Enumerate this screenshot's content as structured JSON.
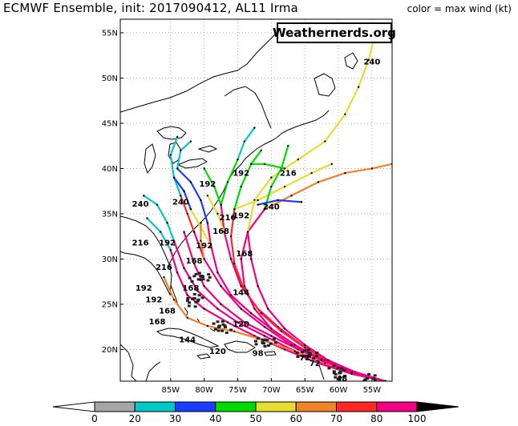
{
  "header": {
    "title": "ECMWF Ensemble, init: 2017090412, AL11 Irma",
    "color_note": "color = max wind (kt)",
    "brand": "Weathernerds.org"
  },
  "map": {
    "lat_ticks": [
      "55N",
      "50N",
      "45N",
      "40N",
      "35N",
      "30N",
      "25N",
      "20N"
    ],
    "lon_ticks": [
      "85W",
      "80W",
      "75W",
      "70W",
      "65W",
      "60W",
      "55W"
    ]
  },
  "legend": {
    "ticks": [
      "0",
      "20",
      "30",
      "40",
      "50",
      "60",
      "70",
      "80",
      "100"
    ],
    "colors": [
      "#a6a6a6",
      "#00c8c8",
      "#1e3cff",
      "#00dc00",
      "#e6dc32",
      "#f08228",
      "#ff2828",
      "#f00082"
    ]
  },
  "tracks": [
    {
      "color": "#f00082",
      "points": [
        [
          -53,
          16.5
        ],
        [
          -58,
          17.5
        ],
        [
          -62,
          18.7
        ],
        [
          -66,
          20
        ],
        [
          -70,
          21.5
        ],
        [
          -74,
          23
        ],
        [
          -77.5,
          25
        ],
        [
          -80,
          27
        ],
        [
          -81.5,
          29.5
        ],
        [
          -83,
          33
        ]
      ]
    },
    {
      "color": "#f00082",
      "points": [
        [
          -53,
          16.5
        ],
        [
          -58,
          17.4
        ],
        [
          -62.5,
          18.6
        ],
        [
          -67,
          20
        ],
        [
          -71,
          21.5
        ],
        [
          -75,
          23
        ],
        [
          -78,
          24.5
        ],
        [
          -81,
          26.5
        ],
        [
          -83,
          29
        ],
        [
          -84.5,
          32
        ]
      ]
    },
    {
      "color": "#f00082",
      "points": [
        [
          -53,
          16.5
        ],
        [
          -58,
          17.6
        ],
        [
          -62,
          19
        ],
        [
          -65.5,
          20.5
        ],
        [
          -69,
          22.5
        ],
        [
          -72,
          24.5
        ],
        [
          -74.5,
          27
        ],
        [
          -76,
          30
        ],
        [
          -77,
          33
        ],
        [
          -77.5,
          36
        ]
      ]
    },
    {
      "color": "#ff2828",
      "points": [
        [
          -53,
          16.5
        ],
        [
          -57.5,
          17.5
        ],
        [
          -61.5,
          18.8
        ],
        [
          -65,
          20.2
        ],
        [
          -68.5,
          22
        ],
        [
          -71.5,
          24
        ],
        [
          -74,
          26.5
        ],
        [
          -75.5,
          29.5
        ],
        [
          -76,
          32.5
        ],
        [
          -75.5,
          35.5
        ]
      ]
    },
    {
      "color": "#f00082",
      "points": [
        [
          -53,
          16.5
        ],
        [
          -58,
          17.3
        ],
        [
          -63,
          18.5
        ],
        [
          -68,
          20
        ],
        [
          -72.5,
          21.5
        ],
        [
          -76.5,
          23
        ],
        [
          -80,
          24.5
        ],
        [
          -82.5,
          26
        ],
        [
          -84,
          28.5
        ],
        [
          -85,
          31
        ]
      ]
    },
    {
      "color": "#f00082",
      "points": [
        [
          -53,
          16.5
        ],
        [
          -58,
          17.5
        ],
        [
          -62,
          18.8
        ],
        [
          -66,
          20.3
        ],
        [
          -69.5,
          22
        ],
        [
          -73,
          24
        ],
        [
          -76,
          26
        ],
        [
          -78,
          28.5
        ],
        [
          -79,
          31.5
        ],
        [
          -79.5,
          34
        ]
      ]
    },
    {
      "color": "#f08228",
      "points": [
        [
          -53,
          16.5
        ],
        [
          -57.5,
          17.4
        ],
        [
          -62,
          18.5
        ],
        [
          -66.5,
          19.8
        ],
        [
          -71,
          21
        ],
        [
          -75.5,
          22
        ],
        [
          -79.5,
          22.6
        ],
        [
          -82.5,
          23.5
        ],
        [
          -84.5,
          25.5
        ],
        [
          -86,
          28
        ]
      ]
    },
    {
      "color": "#f00082",
      "points": [
        [
          -53,
          16.5
        ],
        [
          -58,
          17.5
        ],
        [
          -62.5,
          18.9
        ],
        [
          -66.5,
          20.5
        ],
        [
          -70,
          22.3
        ],
        [
          -72.5,
          24.5
        ],
        [
          -74,
          27
        ],
        [
          -74.5,
          30
        ],
        [
          -73.5,
          33
        ],
        [
          -71,
          35.5
        ]
      ]
    },
    {
      "color": "#f08228",
      "points": [
        [
          -71,
          35.5
        ],
        [
          -67,
          37
        ],
        [
          -63,
          38.5
        ],
        [
          -59,
          39.5
        ],
        [
          -55,
          40
        ],
        [
          -52,
          40.5
        ]
      ]
    },
    {
      "color": "#e6dc32",
      "points": [
        [
          -73.5,
          33
        ],
        [
          -72.5,
          36.5
        ],
        [
          -70,
          39
        ],
        [
          -66,
          41
        ],
        [
          -62,
          43
        ],
        [
          -59,
          46
        ],
        [
          -57,
          49
        ],
        [
          -55.5,
          52
        ],
        [
          -54.5,
          55
        ]
      ]
    },
    {
      "color": "#e6dc32",
      "points": [
        [
          -75.5,
          35.5
        ],
        [
          -72,
          36.5
        ],
        [
          -68,
          38
        ],
        [
          -64,
          39.5
        ],
        [
          -61,
          40.5
        ]
      ]
    },
    {
      "color": "#f00082",
      "points": [
        [
          -53,
          16.5
        ],
        [
          -57.5,
          17.5
        ],
        [
          -61.5,
          18.8
        ],
        [
          -65,
          20.5
        ],
        [
          -68,
          22.3
        ],
        [
          -70.5,
          24.5
        ],
        [
          -72,
          27
        ],
        [
          -73,
          30
        ],
        [
          -73.5,
          33
        ]
      ]
    },
    {
      "color": "#f00082",
      "points": [
        [
          -53,
          16.5
        ],
        [
          -58,
          17.5
        ],
        [
          -62.5,
          18.8
        ],
        [
          -67,
          20.5
        ],
        [
          -71,
          22.5
        ],
        [
          -74.5,
          24.5
        ],
        [
          -77.5,
          27
        ],
        [
          -80,
          30
        ],
        [
          -81.5,
          33
        ]
      ]
    },
    {
      "color": "#ff2828",
      "points": [
        [
          -81.5,
          33
        ],
        [
          -82.5,
          35
        ],
        [
          -83.5,
          37
        ]
      ]
    },
    {
      "color": "#e6dc32",
      "points": [
        [
          -77,
          33
        ],
        [
          -78,
          35
        ],
        [
          -79.5,
          37
        ]
      ]
    },
    {
      "color": "#00dc00",
      "points": [
        [
          -77.5,
          36
        ],
        [
          -78.5,
          38
        ],
        [
          -80,
          40
        ]
      ]
    },
    {
      "color": "#1e3cff",
      "points": [
        [
          -79.5,
          34
        ],
        [
          -80.5,
          36.5
        ],
        [
          -82,
          38.5
        ],
        [
          -84,
          40
        ]
      ]
    },
    {
      "color": "#00c8c8",
      "points": [
        [
          -84.5,
          32
        ],
        [
          -85.5,
          34
        ],
        [
          -87,
          36
        ],
        [
          -89,
          37
        ]
      ]
    },
    {
      "color": "#00c8c8",
      "points": [
        [
          -83.5,
          37
        ],
        [
          -84.5,
          39
        ],
        [
          -85,
          41.5
        ],
        [
          -84,
          43.5
        ]
      ]
    },
    {
      "color": "#00dc00",
      "points": [
        [
          -75.5,
          35.5
        ],
        [
          -74.5,
          38
        ],
        [
          -73,
          40.5
        ],
        [
          -71.5,
          42
        ]
      ]
    },
    {
      "color": "#00dc00",
      "points": [
        [
          -71,
          35.5
        ],
        [
          -70,
          38
        ],
        [
          -68.5,
          40
        ],
        [
          -67.5,
          42.5
        ]
      ]
    },
    {
      "color": "#e6dc32",
      "points": [
        [
          -79,
          31.5
        ],
        [
          -80.5,
          33.5
        ],
        [
          -82,
          35.5
        ]
      ]
    },
    {
      "color": "#1e3cff",
      "points": [
        [
          -82,
          35.5
        ],
        [
          -83,
          37.5
        ],
        [
          -84.5,
          39
        ]
      ]
    },
    {
      "color": "#00c8c8",
      "points": [
        [
          -85,
          31
        ],
        [
          -86.5,
          33
        ],
        [
          -88.5,
          34.5
        ]
      ]
    },
    {
      "color": "#00c8c8",
      "points": [
        [
          -84,
          40
        ],
        [
          -83.5,
          42
        ],
        [
          -82,
          43
        ]
      ]
    },
    {
      "color": "#00dc00",
      "points": [
        [
          -77.5,
          36
        ],
        [
          -76.5,
          38.5
        ],
        [
          -75,
          41
        ]
      ]
    },
    {
      "color": "#00c8c8",
      "points": [
        [
          -75,
          41
        ],
        [
          -74,
          43
        ],
        [
          -72.5,
          44.5
        ]
      ]
    },
    {
      "color": "#1e3cff",
      "points": [
        [
          -72,
          36
        ],
        [
          -69,
          36.5
        ],
        [
          -65.5,
          36.3
        ]
      ]
    },
    {
      "color": "#00dc00",
      "points": [
        [
          -73,
          40.5
        ],
        [
          -71,
          40.5
        ],
        [
          -68,
          40
        ]
      ]
    },
    {
      "color": "#f08228",
      "points": [
        [
          -80,
          30
        ],
        [
          -80.5,
          32
        ],
        [
          -80.5,
          34
        ]
      ]
    }
  ],
  "leads": [
    {
      "text": "240",
      "lon": -55,
      "lat": 51.5
    },
    {
      "text": "216",
      "lon": -67.5,
      "lat": 39.2
    },
    {
      "text": "192",
      "lon": -74.5,
      "lat": 39.2
    },
    {
      "text": "240",
      "lon": -70,
      "lat": 35.5
    },
    {
      "text": "240",
      "lon": -89.5,
      "lat": 35.8
    },
    {
      "text": "240",
      "lon": -83.5,
      "lat": 36
    },
    {
      "text": "192",
      "lon": -79.5,
      "lat": 38
    },
    {
      "text": "216",
      "lon": -76.5,
      "lat": 34.3
    },
    {
      "text": "192",
      "lon": -74.5,
      "lat": 34.5
    },
    {
      "text": "168",
      "lon": -77.5,
      "lat": 32.8
    },
    {
      "text": "216",
      "lon": -89.5,
      "lat": 31.5
    },
    {
      "text": "192",
      "lon": -85.5,
      "lat": 31.5
    },
    {
      "text": "192",
      "lon": -80,
      "lat": 31.2
    },
    {
      "text": "168",
      "lon": -74,
      "lat": 30.3
    },
    {
      "text": "168",
      "lon": -81.5,
      "lat": 29.5
    },
    {
      "text": "216",
      "lon": -86,
      "lat": 28.8
    },
    {
      "text": "192",
      "lon": -89,
      "lat": 26.5
    },
    {
      "text": "168",
      "lon": -82,
      "lat": 26.5
    },
    {
      "text": "144",
      "lon": -74.5,
      "lat": 26
    },
    {
      "text": "192",
      "lon": -87.5,
      "lat": 25.2
    },
    {
      "text": "168",
      "lon": -85.5,
      "lat": 24
    },
    {
      "text": "168",
      "lon": -87,
      "lat": 22.8
    },
    {
      "text": "144",
      "lon": -82.5,
      "lat": 20.8
    },
    {
      "text": "120",
      "lon": -78,
      "lat": 19.5
    },
    {
      "text": "120",
      "lon": -74.5,
      "lat": 22.5
    },
    {
      "text": "98",
      "lon": -72,
      "lat": 19.3
    },
    {
      "text": "72",
      "lon": -63.5,
      "lat": 18.2
    },
    {
      "text": "72",
      "lon": -65,
      "lat": 18.8
    },
    {
      "text": "48",
      "lon": -59.5,
      "lat": 16.5
    }
  ],
  "clusters": [
    {
      "lon": -64.5,
      "lat": 19.5
    },
    {
      "lon": -60,
      "lat": 17.5
    },
    {
      "lon": -55.5,
      "lat": 16.5
    },
    {
      "lon": -71,
      "lat": 20.8
    },
    {
      "lon": -77.5,
      "lat": 22.5
    },
    {
      "lon": -81.5,
      "lat": 25.5
    },
    {
      "lon": -80.5,
      "lat": 28
    }
  ]
}
